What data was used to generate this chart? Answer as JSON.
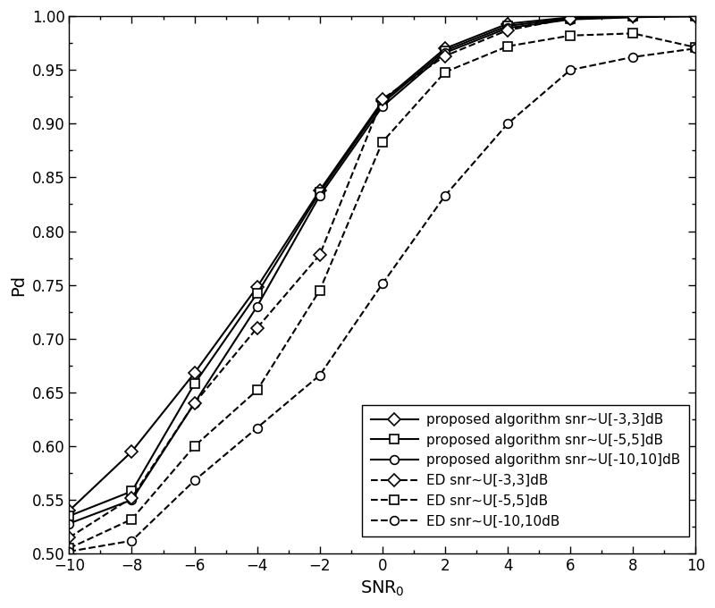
{
  "snr_x": [
    -10,
    -8,
    -6,
    -4,
    -2,
    0,
    2,
    4,
    6,
    8,
    10
  ],
  "proposed_33": [
    0.54,
    0.595,
    0.668,
    0.748,
    0.838,
    0.921,
    0.97,
    0.993,
    0.999,
    1.0,
    1.0
  ],
  "proposed_55": [
    0.535,
    0.558,
    0.658,
    0.742,
    0.836,
    0.919,
    0.968,
    0.991,
    0.998,
    1.0,
    1.0
  ],
  "proposed_1010": [
    0.528,
    0.55,
    0.64,
    0.73,
    0.833,
    0.916,
    0.966,
    0.989,
    0.997,
    0.999,
    1.0
  ],
  "ed_33": [
    0.515,
    0.552,
    0.64,
    0.71,
    0.778,
    0.923,
    0.963,
    0.987,
    0.998,
    1.0,
    1.0
  ],
  "ed_55": [
    0.505,
    0.532,
    0.6,
    0.652,
    0.745,
    0.883,
    0.948,
    0.972,
    0.982,
    0.984,
    0.971
  ],
  "ed_1010": [
    0.502,
    0.512,
    0.568,
    0.617,
    0.666,
    0.751,
    0.833,
    0.9,
    0.95,
    0.962,
    0.97
  ],
  "xlabel": "SNR$_0$",
  "ylabel": "Pd",
  "xlim": [
    -10,
    10
  ],
  "ylim": [
    0.5,
    1.0
  ],
  "xticks": [
    -10,
    -8,
    -6,
    -4,
    -2,
    0,
    2,
    4,
    6,
    8,
    10
  ],
  "yticks": [
    0.5,
    0.55,
    0.6,
    0.65,
    0.7,
    0.75,
    0.8,
    0.85,
    0.9,
    0.95,
    1.0
  ],
  "legend_labels": [
    "proposed algorithm snr~U[-3,3]dB",
    "proposed algorithm snr~U[-5,5]dB",
    "proposed algorithm snr~U[-10,10]dB",
    "ED snr~U[-3,3]dB",
    "ED snr~U[-5,5]dB",
    "ED snr~U[-10,10dB"
  ],
  "linewidth_solid": 1.5,
  "linewidth_dashed": 1.5,
  "markersize": 7,
  "legend_fontsize": 11,
  "tick_labelsize": 12,
  "axis_labelsize": 14
}
